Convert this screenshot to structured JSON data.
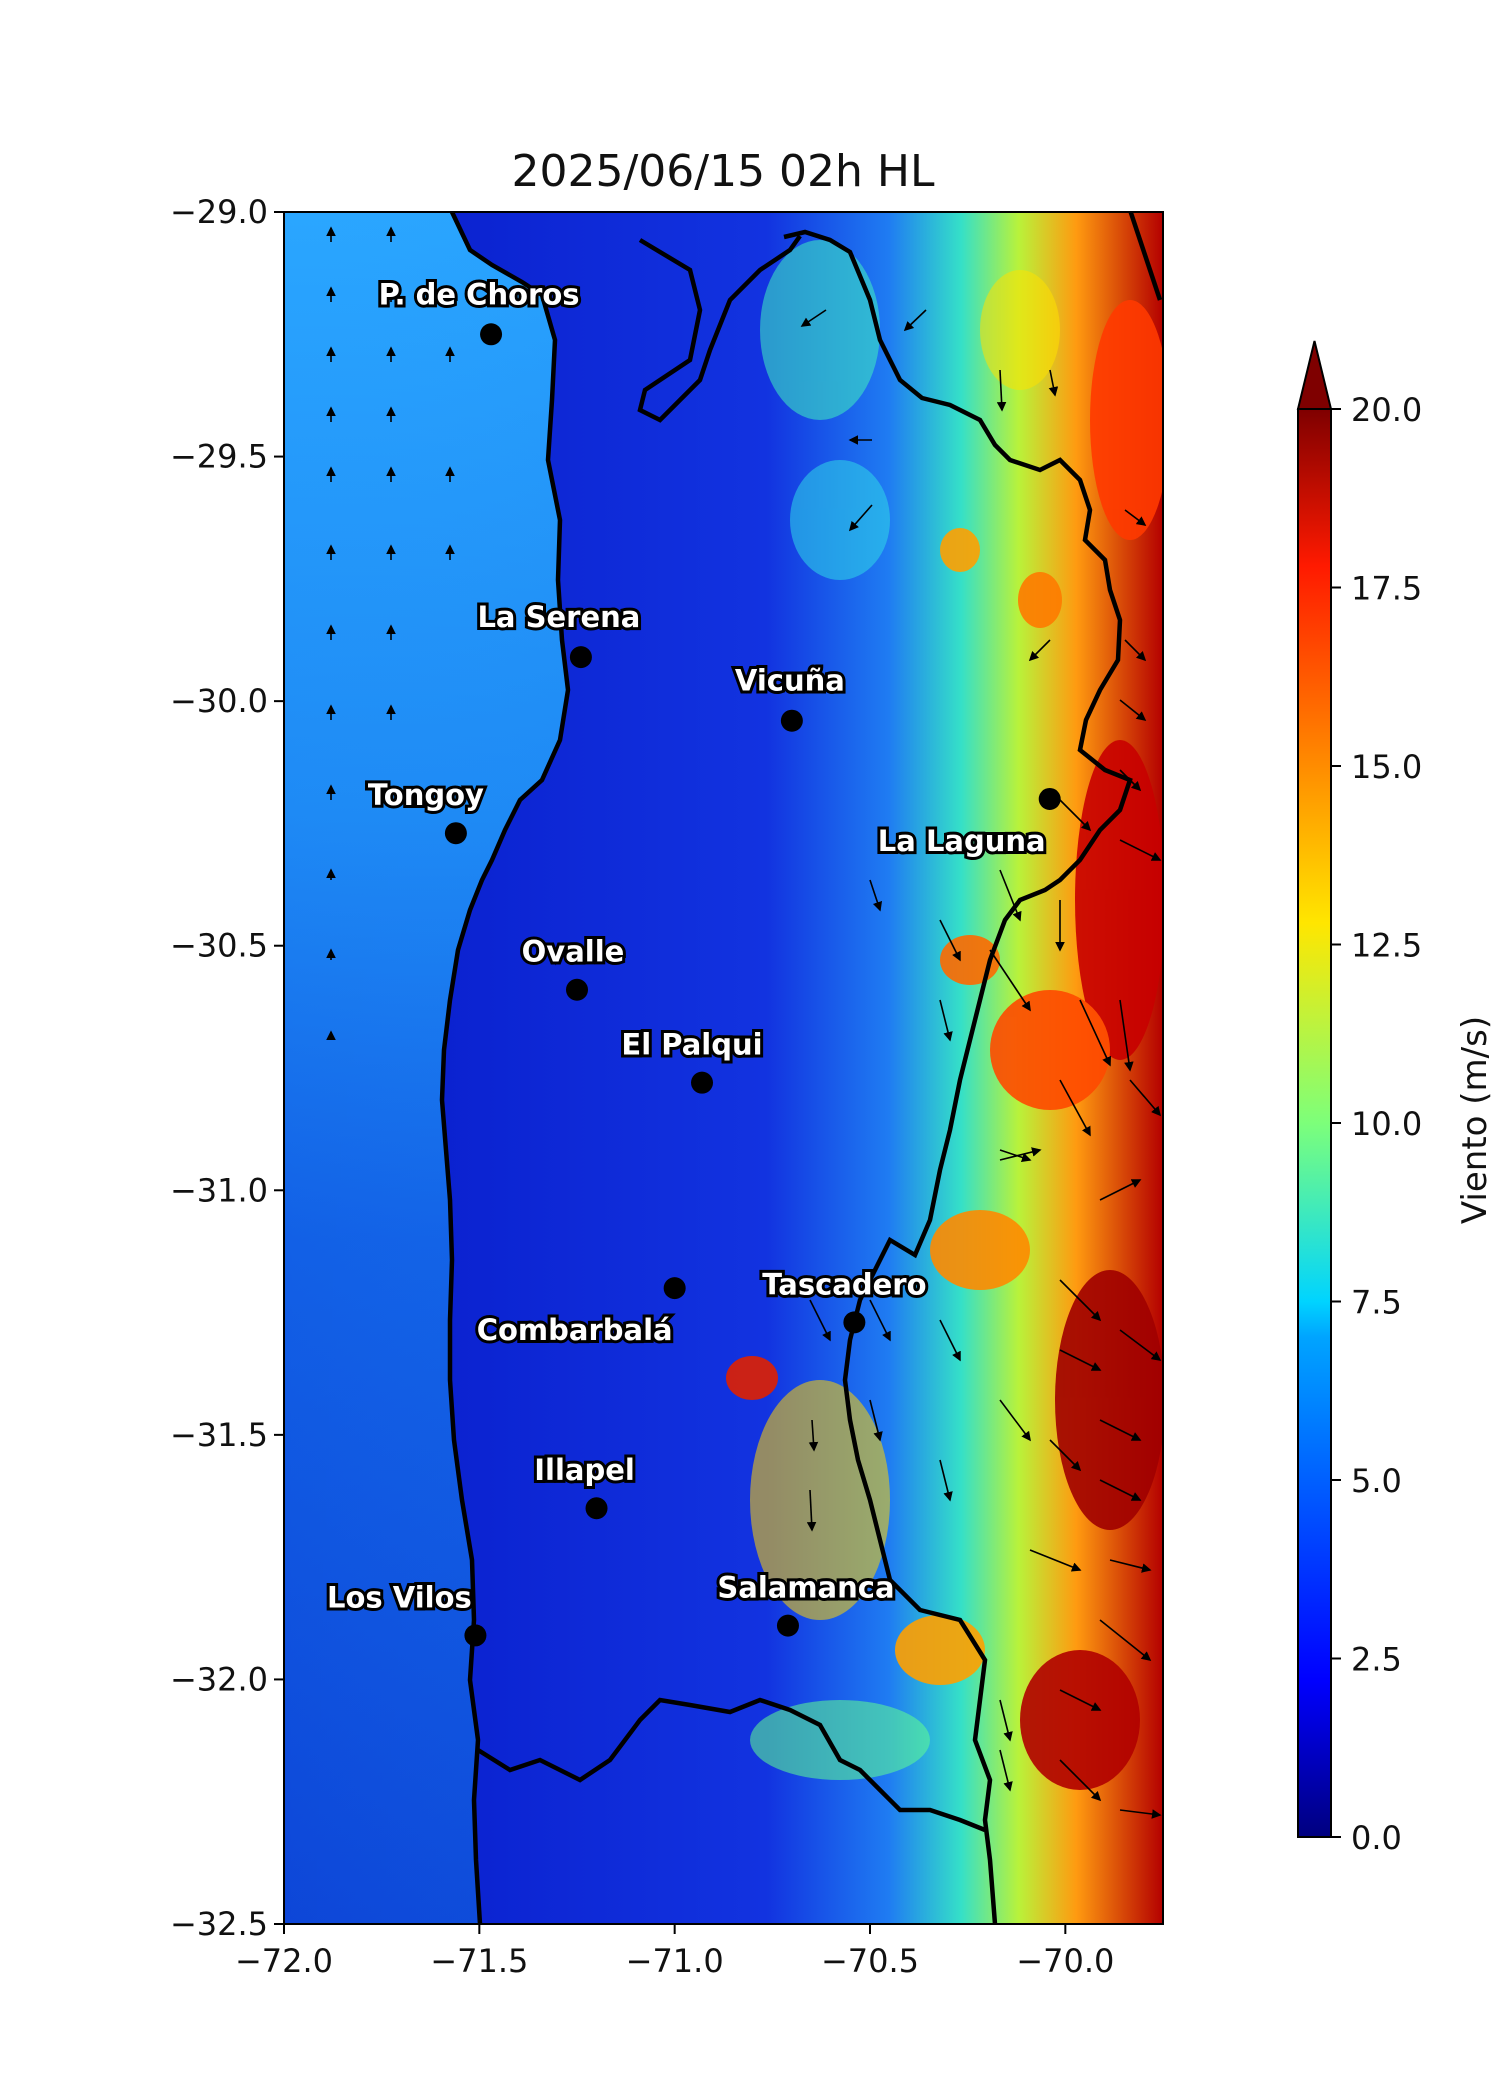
{
  "title": "2025/06/15 02h HL",
  "colorbar": {
    "label": "Viento (m/s)",
    "min": 0,
    "max": 20,
    "ticks": [
      "0.0",
      "2.5",
      "5.0",
      "7.5",
      "10.0",
      "12.5",
      "15.0",
      "17.5",
      "20.0"
    ],
    "extend": "max",
    "colormap": "jet"
  },
  "x_axis": {
    "range": [
      -72.0,
      -69.75
    ],
    "ticks": [
      -72.0,
      -71.5,
      -71.0,
      -70.5,
      -70.0
    ],
    "tick_labels": [
      "−72.0",
      "−71.5",
      "−71.0",
      "−70.5",
      "−70.0"
    ]
  },
  "y_axis": {
    "range": [
      -32.5,
      -29.0
    ],
    "ticks": [
      -29.0,
      -29.5,
      -30.0,
      -30.5,
      -31.0,
      -31.5,
      -32.0,
      -32.5
    ],
    "tick_labels": [
      "−29.0",
      "−29.5",
      "−30.0",
      "−30.5",
      "−31.0",
      "−31.5",
      "−32.0",
      "−32.5"
    ]
  },
  "cities": [
    {
      "name": "P. de Choros",
      "lon": -71.47,
      "lat": -29.25
    },
    {
      "name": "La Serena",
      "lon": -71.24,
      "lat": -29.91
    },
    {
      "name": "Vicuña",
      "lon": -70.7,
      "lat": -30.04
    },
    {
      "name": "Tongoy",
      "lon": -71.56,
      "lat": -30.27
    },
    {
      "name": "La Laguna",
      "lon": -70.04,
      "lat": -30.2
    },
    {
      "name": "Ovalle",
      "lon": -71.25,
      "lat": -30.59
    },
    {
      "name": "El Palqui",
      "lon": -70.93,
      "lat": -30.78
    },
    {
      "name": "Combarbalá",
      "lon": -71.0,
      "lat": -31.2
    },
    {
      "name": "Tascadero",
      "lon": -70.54,
      "lat": -31.27
    },
    {
      "name": "Illapel",
      "lon": -71.2,
      "lat": -31.65
    },
    {
      "name": "Los Vilos",
      "lon": -71.51,
      "lat": -31.91
    },
    {
      "name": "Salamanca",
      "lon": -70.71,
      "lat": -31.89
    }
  ],
  "colors": {
    "coast_line": "#000000",
    "ocean_near": "#1a8cff",
    "land_low": "#0c1fd6"
  }
}
